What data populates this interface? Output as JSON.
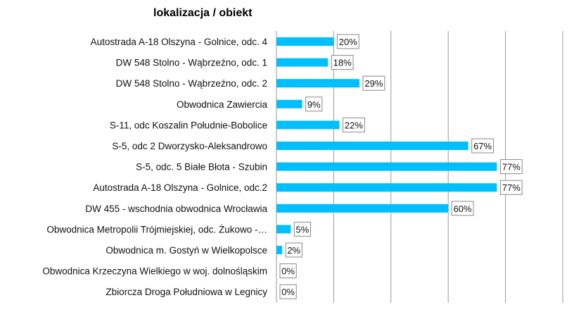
{
  "chart_data": {
    "type": "bar",
    "orientation": "horizontal",
    "title": "lokalizacja / obiekt",
    "xlabel": "",
    "ylabel": "",
    "xlim": [
      0,
      100
    ],
    "grid": true,
    "bar_color": "#00bfff",
    "value_suffix": "%",
    "categories": [
      "Autostrada A-18 Olszyna - Golnice, odc. 4",
      "DW 548 Stolno - Wąbrzeźno, odc. 1",
      "DW 548 Stolno - Wąbrzeźno, odc. 2",
      "Obwodnica Zawiercia",
      "S-11, odc Koszalin Południe-Bobolice",
      "S-5, odc 2 Dworzysko-Aleksandrowo",
      "S-5, odc. 5 Białe Błota - Szubin",
      "Autostrada A-18 Olszyna - Golnice, odc.2",
      "DW 455 - wschodnia obwodnica Wrocławia",
      "Obwodnica Metropolii Trójmiejskiej, odc. Żukowo -…",
      "Obwodnica m. Gostyń w Wielkopolsce",
      "Obwodnica  Krzeczyna Wielkiego w woj. dolnośląskim",
      "Zbiorcza Droga Południowa w Legnicy"
    ],
    "values": [
      20,
      18,
      29,
      9,
      22,
      67,
      77,
      77,
      60,
      5,
      2,
      0,
      0
    ],
    "data_labels": [
      "20%",
      "18%",
      "29%",
      "9%",
      "22%",
      "67%",
      "77%",
      "77%",
      "60%",
      "5%",
      "2%",
      "0%",
      "0%"
    ]
  }
}
